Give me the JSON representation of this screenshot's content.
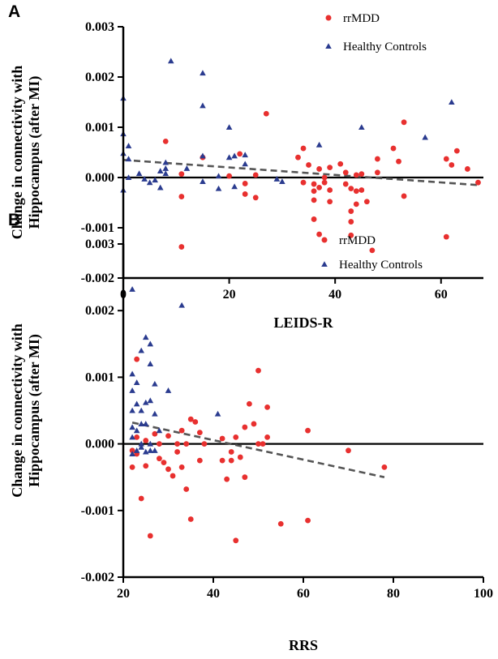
{
  "chart_data": [
    {
      "panel": "A",
      "type": "scatter",
      "xlabel": "LEIDS-R",
      "ylabel": "Change in connectivity with Hippocampus (after MI)",
      "ylabel_lines": [
        "Change in connectivity with",
        "Hippocampus (after MI)"
      ],
      "xlim": [
        0,
        68
      ],
      "ylim": [
        -0.002,
        0.003
      ],
      "xticks": [
        0,
        20,
        40,
        60
      ],
      "yticks": [
        -0.002,
        -0.001,
        0.0,
        0.001,
        0.002,
        0.003
      ],
      "ytick_labels": [
        "-0.002",
        "-0.001",
        "0.000",
        "0.001",
        "0.002",
        "0.003"
      ],
      "legend_position": "top-right",
      "zero_line": true,
      "series": [
        {
          "name": "rrMDD",
          "marker": "circle",
          "color": "#e8302f",
          "points": [
            [
              8,
              0.00072
            ],
            [
              11,
              7e-05
            ],
            [
              11,
              -0.00038
            ],
            [
              11,
              -0.00138
            ],
            [
              15,
              0.0004
            ],
            [
              20,
              3e-05
            ],
            [
              22,
              0.00047
            ],
            [
              23,
              -0.00012
            ],
            [
              23,
              -0.00033
            ],
            [
              25,
              5e-05
            ],
            [
              25,
              -0.0004
            ],
            [
              27,
              0.00127
            ],
            [
              33,
              0.0004
            ],
            [
              34,
              0.00058
            ],
            [
              34,
              -0.0001
            ],
            [
              35,
              0.00025
            ],
            [
              36,
              -0.00013
            ],
            [
              36,
              -0.00027
            ],
            [
              36,
              -0.00045
            ],
            [
              36,
              -0.00083
            ],
            [
              37,
              0.00017
            ],
            [
              37,
              -0.0002
            ],
            [
              37,
              -0.00113
            ],
            [
              38,
              0.0
            ],
            [
              38,
              -0.0001
            ],
            [
              39,
              0.0002
            ],
            [
              39,
              -0.00025
            ],
            [
              39,
              -0.00048
            ],
            [
              41,
              0.00027
            ],
            [
              42,
              0.0001
            ],
            [
              42,
              -0.00013
            ],
            [
              43,
              -0.00022
            ],
            [
              43,
              -0.00067
            ],
            [
              43,
              -0.00088
            ],
            [
              43,
              -0.00115
            ],
            [
              44,
              5e-05
            ],
            [
              44,
              -0.00027
            ],
            [
              44,
              -0.00053
            ],
            [
              45,
              7e-05
            ],
            [
              45,
              -0.00025
            ],
            [
              46,
              -0.00048
            ],
            [
              47,
              -0.00145
            ],
            [
              48,
              0.00037
            ],
            [
              48,
              0.0001
            ],
            [
              51,
              0.00058
            ],
            [
              52,
              0.00032
            ],
            [
              53,
              0.0011
            ],
            [
              53,
              -0.00037
            ],
            [
              61,
              0.00037
            ],
            [
              61,
              -0.00118
            ],
            [
              62,
              0.00025
            ],
            [
              63,
              0.00053
            ],
            [
              65,
              0.00017
            ],
            [
              67,
              -0.0001
            ]
          ]
        },
        {
          "name": "Healthy Controls",
          "marker": "triangle",
          "color": "#2a3b8f",
          "points": [
            [
              0,
              0.00158
            ],
            [
              0,
              0.00087
            ],
            [
              0,
              0.00048
            ],
            [
              0,
              -0.00025
            ],
            [
              1,
              0.00063
            ],
            [
              1,
              0.00037
            ],
            [
              1,
              0.0
            ],
            [
              3,
              8e-05
            ],
            [
              4,
              -3e-05
            ],
            [
              5,
              -0.0001
            ],
            [
              6,
              -5e-05
            ],
            [
              7,
              0.00013
            ],
            [
              7,
              -0.0002
            ],
            [
              8,
              0.0003
            ],
            [
              8,
              0.00018
            ],
            [
              8,
              8e-05
            ],
            [
              9,
              0.00232
            ],
            [
              12,
              0.00018
            ],
            [
              15,
              0.00208
            ],
            [
              15,
              0.00143
            ],
            [
              15,
              0.00043
            ],
            [
              15,
              -8e-05
            ],
            [
              18,
              3e-05
            ],
            [
              18,
              -0.00022
            ],
            [
              20,
              0.001
            ],
            [
              20,
              0.0004
            ],
            [
              21,
              0.00043
            ],
            [
              21,
              -0.00018
            ],
            [
              23,
              0.00045
            ],
            [
              23,
              0.00027
            ],
            [
              29,
              -3e-05
            ],
            [
              30,
              -8e-05
            ],
            [
              37,
              0.00065
            ],
            [
              45,
              0.001
            ],
            [
              57,
              0.0008
            ],
            [
              62,
              0.0015
            ]
          ]
        }
      ],
      "trendline": {
        "x": [
          0,
          67
        ],
        "y": [
          0.00035,
          -0.00015
        ],
        "style": "dashed",
        "color": "#555555"
      }
    },
    {
      "panel": "B",
      "type": "scatter",
      "xlabel": "RRS",
      "ylabel": "Change in connectivity with Hippocampus (after MI)",
      "ylabel_lines": [
        "Change in connectivity with",
        "Hippocampus (after MI)"
      ],
      "xlim": [
        20,
        100
      ],
      "ylim": [
        -0.002,
        0.003
      ],
      "xticks": [
        20,
        40,
        60,
        80,
        100
      ],
      "yticks": [
        -0.002,
        -0.001,
        0.0,
        0.001,
        0.002,
        0.003
      ],
      "ytick_labels": [
        "-0.002",
        "-0.001",
        "0.000",
        "0.001",
        "0.002",
        "0.003"
      ],
      "legend_position": "top-right",
      "zero_line": true,
      "series": [
        {
          "name": "rrMDD",
          "marker": "circle",
          "color": "#e8302f",
          "points": [
            [
              22,
              -0.00035
            ],
            [
              22,
              -0.0001
            ],
            [
              23,
              0.00127
            ],
            [
              23,
              0.0001
            ],
            [
              23,
              -0.00015
            ],
            [
              24,
              -0.00082
            ],
            [
              25,
              5e-05
            ],
            [
              25,
              -0.00033
            ],
            [
              26,
              -0.00138
            ],
            [
              27,
              0.00015
            ],
            [
              28,
              0.0
            ],
            [
              28,
              -0.00022
            ],
            [
              29,
              -0.00028
            ],
            [
              30,
              0.00012
            ],
            [
              30,
              -0.00038
            ],
            [
              31,
              -0.00048
            ],
            [
              32,
              0.0
            ],
            [
              32,
              -0.00012
            ],
            [
              33,
              0.0002
            ],
            [
              33,
              -0.00035
            ],
            [
              34,
              -0.00068
            ],
            [
              34,
              0.0
            ],
            [
              35,
              0.00037
            ],
            [
              35,
              -0.00113
            ],
            [
              36,
              0.00033
            ],
            [
              37,
              0.00017
            ],
            [
              37,
              -0.00025
            ],
            [
              38,
              0.0
            ],
            [
              42,
              8e-05
            ],
            [
              42,
              -0.00025
            ],
            [
              43,
              -0.00053
            ],
            [
              44,
              -0.00025
            ],
            [
              44,
              -0.00012
            ],
            [
              45,
              -0.00145
            ],
            [
              45,
              0.0001
            ],
            [
              46,
              -0.0002
            ],
            [
              47,
              -0.0005
            ],
            [
              47,
              0.00025
            ],
            [
              48,
              0.0006
            ],
            [
              49,
              0.0003
            ],
            [
              50,
              0.0011
            ],
            [
              50,
              0.0
            ],
            [
              51,
              0.0
            ],
            [
              52,
              0.00055
            ],
            [
              52,
              0.0001
            ],
            [
              55,
              -0.0012
            ],
            [
              61,
              0.0002
            ],
            [
              61,
              -0.00115
            ],
            [
              70,
              -0.0001
            ],
            [
              78,
              -0.00035
            ]
          ]
        },
        {
          "name": "Healthy Controls",
          "marker": "triangle",
          "color": "#2a3b8f",
          "points": [
            [
              22,
              0.00232
            ],
            [
              22,
              0.00105
            ],
            [
              22,
              0.0008
            ],
            [
              22,
              0.0005
            ],
            [
              22,
              0.00025
            ],
            [
              22,
              0.0001
            ],
            [
              22,
              -0.00015
            ],
            [
              23,
              0.00092
            ],
            [
              23,
              0.0006
            ],
            [
              23,
              0.0002
            ],
            [
              23,
              -0.0001
            ],
            [
              24,
              0.0014
            ],
            [
              24,
              0.0005
            ],
            [
              24,
              0.0003
            ],
            [
              24,
              0.0
            ],
            [
              24,
              -5e-05
            ],
            [
              25,
              0.0016
            ],
            [
              25,
              0.00062
            ],
            [
              25,
              0.0003
            ],
            [
              25,
              -0.00012
            ],
            [
              26,
              0.0015
            ],
            [
              26,
              0.0012
            ],
            [
              26,
              0.00065
            ],
            [
              26,
              0.0
            ],
            [
              26,
              -0.0001
            ],
            [
              27,
              0.0009
            ],
            [
              27,
              0.00045
            ],
            [
              27,
              -0.0001
            ],
            [
              28,
              0.0002
            ],
            [
              30,
              0.0008
            ],
            [
              33,
              0.00208
            ],
            [
              41,
              0.00045
            ]
          ]
        }
      ],
      "trendline": {
        "x": [
          22,
          78
        ],
        "y": [
          0.00032,
          -0.0005
        ],
        "style": "dashed",
        "color": "#555555"
      }
    }
  ]
}
